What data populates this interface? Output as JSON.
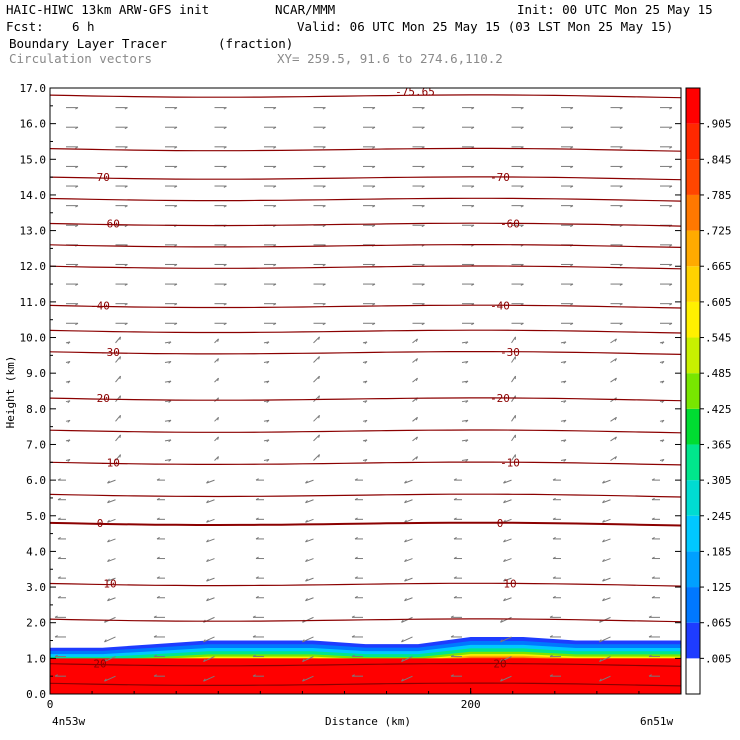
{
  "header": {
    "model": "HAIC-HIWC 13km ARW-GFS init",
    "org": "NCAR/MMM",
    "init": "Init: 00 UTC Mon 25 May 15",
    "fcst_label": "Fcst:",
    "fcst_value": "6 h",
    "valid": "Valid: 06 UTC Mon 25 May 15 (03 LST Mon 25 May 15)",
    "field_name": "Boundary Layer Tracer",
    "field_units": "(fraction)",
    "overlay_name": "Circulation vectors",
    "xy": "XY= 259.5, 91.6 to 274.6,110.2"
  },
  "chart_data": {
    "type": "heatmap",
    "ylabel": "Height (km)",
    "xlabel": "Distance (km)",
    "xlim": [
      0,
      300
    ],
    "ylim": [
      0,
      17
    ],
    "y_ticks": [
      "0.0",
      "1.0",
      "2.0",
      "3.0",
      "4.0",
      "5.0",
      "6.0",
      "7.0",
      "8.0",
      "9.0",
      "10.0",
      "11.0",
      "12.0",
      "13.0",
      "14.0",
      "15.0",
      "16.0",
      "17.0"
    ],
    "x_ticks": [
      "0",
      "200"
    ],
    "x_endpoint_labels": [
      "4n53w",
      "6n51w"
    ],
    "colorbar_labels": [
      ".005",
      ".065",
      ".125",
      ".185",
      ".245",
      ".305",
      ".365",
      ".425",
      ".485",
      ".545",
      ".605",
      ".665",
      ".725",
      ".785",
      ".845",
      ".905"
    ],
    "colorbar_colors": [
      "#ffffff",
      "#1e3cff",
      "#0078ff",
      "#00a0ff",
      "#00c8ff",
      "#00dcd2",
      "#00e68c",
      "#00dc32",
      "#78e600",
      "#c8f000",
      "#fff000",
      "#ffd200",
      "#ffaa00",
      "#ff7800",
      "#ff4600",
      "#ff2800",
      "#ff0000"
    ],
    "temperature_contours": [
      {
        "label": "20",
        "height_km": 0.85
      },
      {
        "label": "10",
        "height_km": 3.1
      },
      {
        "label": "0",
        "height_km": 4.8
      },
      {
        "label": "-10",
        "height_km": 6.5
      },
      {
        "label": "-20",
        "height_km": 8.3
      },
      {
        "label": "-30",
        "height_km": 9.6
      },
      {
        "label": "-40",
        "height_km": 10.9
      },
      {
        "label": "-60",
        "height_km": 13.2
      },
      {
        "label": "-70",
        "height_km": 14.5
      }
    ],
    "unlabeled_contour_heights_km": [
      0.3,
      2.1,
      5.6,
      7.4,
      10.2,
      12.0,
      12.6,
      13.9,
      15.3,
      16.8
    ],
    "top_contour_label": "-75.65",
    "tracer_layer": {
      "top_km": [
        1.3,
        1.3,
        1.4,
        1.5,
        1.5,
        1.5,
        1.4,
        1.4,
        1.6,
        1.6,
        1.5,
        1.5,
        1.5
      ],
      "core_top_km": 1.0
    }
  }
}
